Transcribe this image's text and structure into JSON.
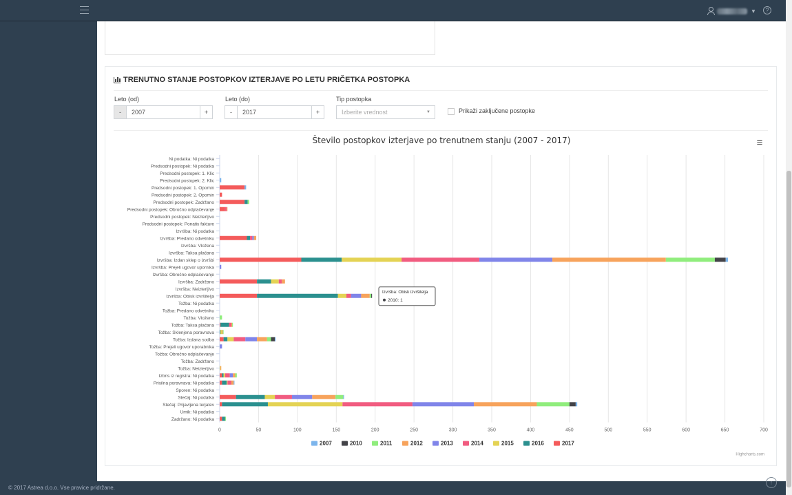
{
  "header": {
    "menu_icon": "hamburger-icon",
    "user_icon": "user-icon",
    "help_icon": "help-icon",
    "help_glyph": "?"
  },
  "footer": {
    "copyright": "© 2017 Astrea d.o.o. Vse pravice pridržane."
  },
  "panel": {
    "title": "TRENUTNO STANJE POSTOPKOV IZTERJAVE PO LETU PRIČETKA POSTOPKA",
    "filters": {
      "year_from_label": "Leto (od)",
      "year_from_value": "2007",
      "year_to_label": "Leto (do)",
      "year_to_value": "2017",
      "minus": "-",
      "plus": "+",
      "type_label": "Tip postopka",
      "type_placeholder": "Izberite vrednost",
      "show_closed_label": "Prikaži zaključene postopke"
    }
  },
  "chart_data": {
    "type": "bar",
    "orientation": "horizontal",
    "stacked": true,
    "title": "Število postopkov izterjave po trenutnem stanju (2007 - 2017)",
    "xlim": [
      0,
      700
    ],
    "xticks": [
      0,
      50,
      100,
      150,
      200,
      250,
      300,
      350,
      400,
      450,
      500,
      550,
      600,
      650,
      700
    ],
    "grid": true,
    "legend_position": "bottom",
    "credits": "Highcharts.com",
    "menu_glyph": "≡",
    "colors": {
      "2007": "#7cb5ec",
      "2010": "#434348",
      "2011": "#90ed7d",
      "2012": "#f7a35c",
      "2013": "#8085e9",
      "2014": "#f15c80",
      "2015": "#e4d354",
      "2016": "#2b908f",
      "2017": "#f45b5b"
    },
    "tooltip": {
      "category": "Izvršba: Obisk izvršitelja",
      "series": "2010",
      "value": 1,
      "text": "2010: 1"
    },
    "categories": [
      "Ni podatka: Ni podatka",
      "Predsodni postopek: Ni podatka",
      "Predsodni postopek: 1. Klic",
      "Predsodni postopek: 2. Klic",
      "Predsodni postopek: 1. Opomin",
      "Predsodni postopek: 2. Opomin",
      "Predsodni postopek: Zadržano",
      "Predsodni postopek: Obročno odplačevanje",
      "Predsodni postopek: Neizterljivo",
      "Predsodni postopek: Ponatis fakture",
      "Izvršba: Ni podatka",
      "Izvršba: Predano odvetniku",
      "Izvršba: Vložena",
      "Izvršba: Taksa plačana",
      "Izvršba: Izdan sklep o izvršbi",
      "Izvršba: Prejeli ugovor upornika",
      "Izvršba: Obročno odplačevanje",
      "Izvršba: Zadržano",
      "Izvršba: Neizterljivo",
      "Izvršba: Obisk izvršitelja",
      "Tožba: Ni podatka",
      "Tožba: Predano odvetniku",
      "Tožba: Vloženo",
      "Tožba: Taksa plačana",
      "Tožba: Sklenjena poravnava",
      "Tožba: Izdana sodba",
      "Tožba: Prejeli ugovor uporabnika",
      "Tožba: Obročno odplačevanje",
      "Tožba: Zadržano",
      "Tožba: Neizterljivo",
      "Izbris iz registra: Ni podatka",
      "Prisilna poravnava: Ni podatka",
      "Sporen: Ni podatka",
      "Stečaj: Ni podatka",
      "Stečaj: Prijavljena terjatev",
      "Umik: Ni podatka",
      "Zadržano: Ni podatka"
    ],
    "series": [
      {
        "name": "2017",
        "values": [
          0,
          0,
          0,
          0,
          32,
          3,
          32,
          7,
          0,
          0,
          0,
          35,
          0,
          0,
          105,
          0,
          0,
          48,
          0,
          48,
          0,
          0,
          0,
          1,
          0,
          5,
          0,
          0,
          0,
          0,
          3,
          3,
          0,
          21,
          3,
          0,
          3
        ]
      },
      {
        "name": "2016",
        "values": [
          0,
          0,
          0,
          0,
          0,
          0,
          4,
          0,
          0,
          0,
          0,
          4,
          0,
          0,
          52,
          0,
          0,
          18,
          0,
          104,
          0,
          0,
          0,
          11,
          1,
          5,
          0,
          0,
          0,
          0,
          2,
          6,
          0,
          37,
          59,
          0,
          4
        ]
      },
      {
        "name": "2015",
        "values": [
          0,
          0,
          0,
          0,
          0,
          0,
          0,
          0,
          0,
          0,
          0,
          0,
          0,
          0,
          77,
          0,
          0,
          10,
          0,
          11,
          0,
          0,
          0,
          0,
          2,
          8,
          0,
          0,
          0,
          1,
          2,
          1,
          0,
          13,
          96,
          0,
          0
        ]
      },
      {
        "name": "2014",
        "values": [
          0,
          0,
          0,
          0,
          0,
          0,
          0,
          2,
          0,
          0,
          0,
          3,
          0,
          0,
          100,
          0,
          0,
          4,
          0,
          6,
          0,
          0,
          0,
          3,
          0,
          15,
          0,
          0,
          0,
          0,
          6,
          5,
          0,
          22,
          90,
          0,
          0
        ]
      },
      {
        "name": "2013",
        "values": [
          0,
          0,
          0,
          0,
          0,
          0,
          0,
          0,
          0,
          0,
          0,
          2,
          0,
          0,
          94,
          2,
          0,
          0,
          0,
          13,
          0,
          0,
          0,
          0,
          0,
          15,
          3,
          0,
          0,
          0,
          4,
          0,
          0,
          26,
          79,
          0,
          0
        ]
      },
      {
        "name": "2012",
        "values": [
          0,
          0,
          0,
          0,
          0,
          0,
          0,
          1,
          0,
          0,
          0,
          3,
          0,
          0,
          146,
          0,
          0,
          4,
          0,
          11,
          0,
          0,
          0,
          1,
          1,
          13,
          0,
          0,
          0,
          1,
          3,
          3,
          0,
          30,
          81,
          0,
          0
        ]
      },
      {
        "name": "2011",
        "values": [
          0,
          0,
          0,
          0,
          0,
          0,
          2,
          0,
          0,
          0,
          0,
          0,
          0,
          0,
          63,
          0,
          0,
          0,
          0,
          2,
          0,
          0,
          3,
          1,
          1,
          5,
          0,
          0,
          0,
          0,
          2,
          0,
          0,
          10,
          42,
          0,
          1
        ]
      },
      {
        "name": "2010",
        "values": [
          0,
          0,
          0,
          0,
          0,
          0,
          0,
          0,
          0,
          0,
          0,
          0,
          0,
          0,
          14,
          0,
          0,
          0,
          0,
          1,
          0,
          0,
          0,
          0,
          0,
          5,
          0,
          0,
          0,
          0,
          0,
          0,
          0,
          0,
          8,
          0,
          0
        ]
      },
      {
        "name": "2007",
        "values": [
          0,
          0,
          0,
          2,
          2,
          0,
          0,
          0,
          0,
          0,
          0,
          0,
          0,
          0,
          3,
          0,
          0,
          0,
          0,
          0,
          0,
          0,
          0,
          0,
          0,
          1,
          0,
          0,
          0,
          0,
          0,
          1,
          0,
          1,
          2,
          0,
          0
        ]
      }
    ],
    "legend_order": [
      "2007",
      "2010",
      "2011",
      "2012",
      "2013",
      "2014",
      "2015",
      "2016",
      "2017"
    ]
  }
}
